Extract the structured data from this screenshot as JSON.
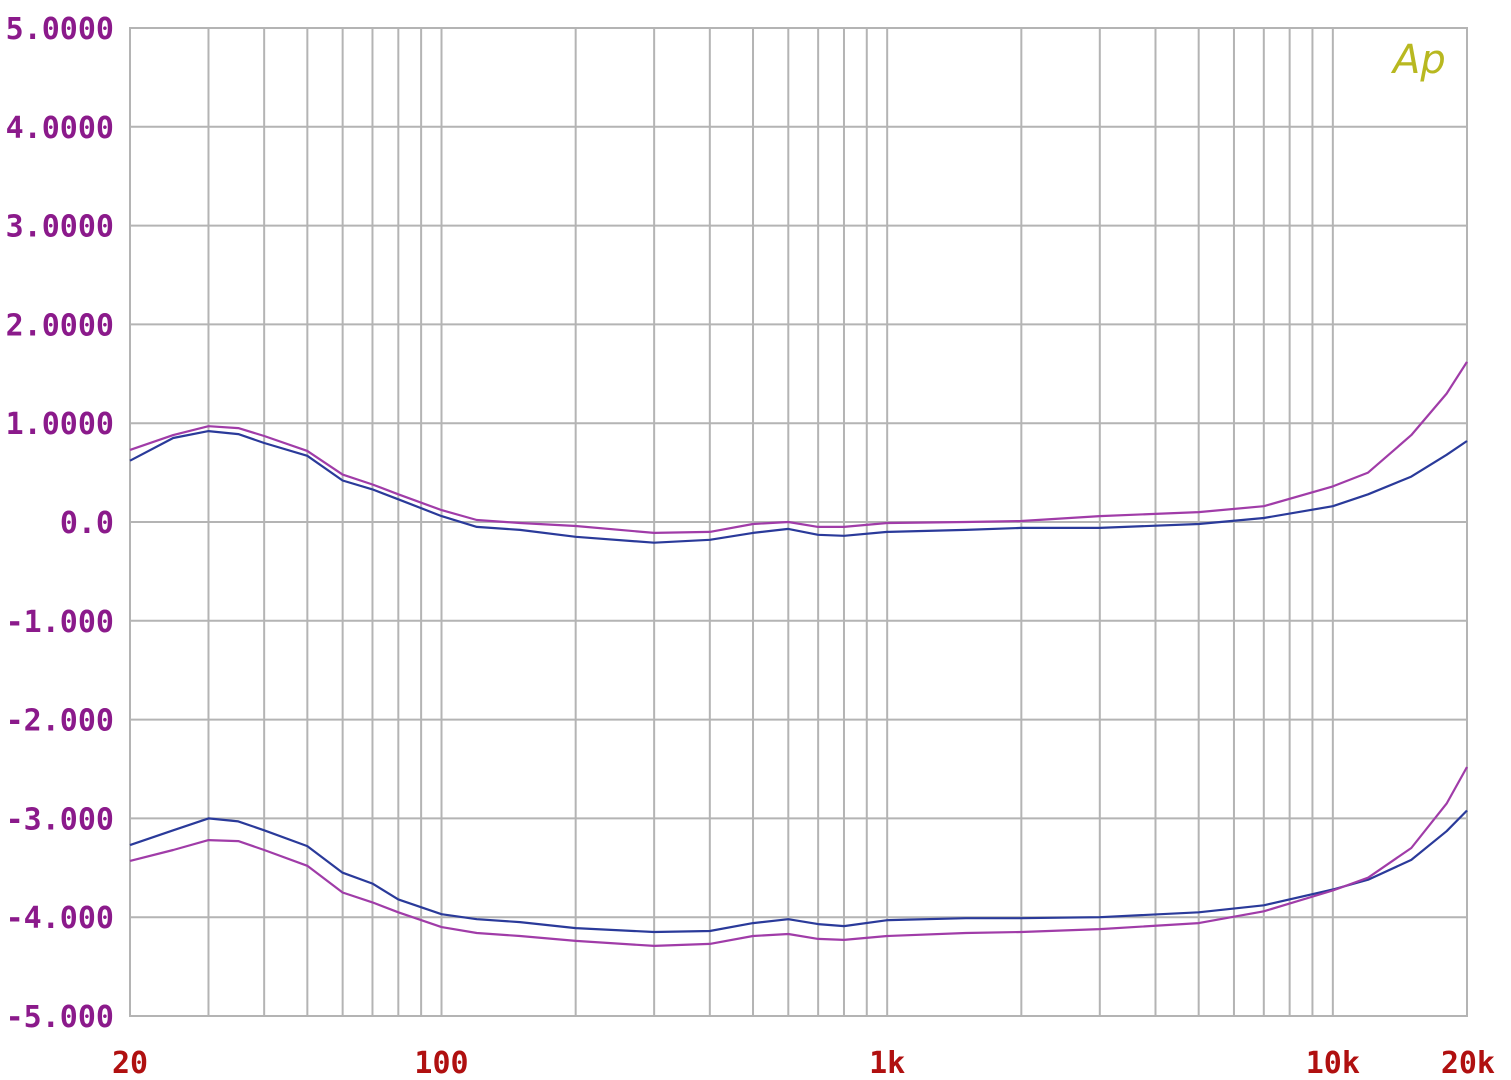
{
  "chart_data": {
    "type": "line",
    "title": "",
    "xlabel": "",
    "ylabel": "",
    "x_scale": "log",
    "xlim": [
      20,
      20000
    ],
    "ylim": [
      -5,
      5
    ],
    "grid": true,
    "logo_text": "Ap",
    "colors": {
      "grid": "#b4b4b4",
      "ytick_label": "#8b1a8b",
      "xtick_label": "#b01010",
      "logo": "#b8b820",
      "blue": "#2a3a9a",
      "magenta": "#a03ca8"
    },
    "y_ticks": [
      {
        "value": 5,
        "label": "5.0000"
      },
      {
        "value": 4,
        "label": "4.0000"
      },
      {
        "value": 3,
        "label": "3.0000"
      },
      {
        "value": 2,
        "label": "2.0000"
      },
      {
        "value": 1,
        "label": "1.0000"
      },
      {
        "value": 0,
        "label": "0.0"
      },
      {
        "value": -1,
        "label": "-1.000"
      },
      {
        "value": -2,
        "label": "-2.000"
      },
      {
        "value": -3,
        "label": "-3.000"
      },
      {
        "value": -4,
        "label": "-4.000"
      },
      {
        "value": -5,
        "label": "-5.000"
      }
    ],
    "x_ticks": [
      {
        "value": 20,
        "label": "20"
      },
      {
        "value": 100,
        "label": "100"
      },
      {
        "value": 1000,
        "label": "1k"
      },
      {
        "value": 10000,
        "label": "10k"
      },
      {
        "value": 20000,
        "label": "20k"
      }
    ],
    "x_gridlines": [
      20,
      30,
      40,
      50,
      60,
      70,
      80,
      90,
      100,
      200,
      300,
      400,
      500,
      600,
      700,
      800,
      900,
      1000,
      2000,
      3000,
      4000,
      5000,
      6000,
      7000,
      8000,
      9000,
      10000,
      20000
    ],
    "series": [
      {
        "color": "#a03ca8",
        "points": [
          [
            20,
            0.73
          ],
          [
            25,
            0.88
          ],
          [
            30,
            0.97
          ],
          [
            35,
            0.95
          ],
          [
            40,
            0.87
          ],
          [
            50,
            0.72
          ],
          [
            60,
            0.48
          ],
          [
            70,
            0.38
          ],
          [
            80,
            0.28
          ],
          [
            100,
            0.12
          ],
          [
            120,
            0.02
          ],
          [
            150,
            -0.01
          ],
          [
            200,
            -0.04
          ],
          [
            300,
            -0.11
          ],
          [
            400,
            -0.1
          ],
          [
            500,
            -0.02
          ],
          [
            600,
            0.0
          ],
          [
            700,
            -0.05
          ],
          [
            800,
            -0.05
          ],
          [
            1000,
            -0.01
          ],
          [
            1500,
            0.0
          ],
          [
            2000,
            0.01
          ],
          [
            3000,
            0.06
          ],
          [
            5000,
            0.1
          ],
          [
            7000,
            0.16
          ],
          [
            10000,
            0.36
          ],
          [
            12000,
            0.5
          ],
          [
            15000,
            0.88
          ],
          [
            18000,
            1.3
          ],
          [
            20000,
            1.62
          ]
        ]
      },
      {
        "color": "#2a3a9a",
        "points": [
          [
            20,
            0.62
          ],
          [
            25,
            0.85
          ],
          [
            30,
            0.92
          ],
          [
            35,
            0.89
          ],
          [
            40,
            0.8
          ],
          [
            50,
            0.67
          ],
          [
            60,
            0.42
          ],
          [
            70,
            0.33
          ],
          [
            80,
            0.23
          ],
          [
            100,
            0.06
          ],
          [
            120,
            -0.05
          ],
          [
            150,
            -0.08
          ],
          [
            200,
            -0.15
          ],
          [
            300,
            -0.21
          ],
          [
            400,
            -0.18
          ],
          [
            500,
            -0.11
          ],
          [
            600,
            -0.07
          ],
          [
            700,
            -0.13
          ],
          [
            800,
            -0.14
          ],
          [
            1000,
            -0.1
          ],
          [
            1500,
            -0.08
          ],
          [
            2000,
            -0.06
          ],
          [
            3000,
            -0.06
          ],
          [
            5000,
            -0.02
          ],
          [
            7000,
            0.04
          ],
          [
            10000,
            0.16
          ],
          [
            12000,
            0.28
          ],
          [
            15000,
            0.46
          ],
          [
            18000,
            0.68
          ],
          [
            20000,
            0.82
          ]
        ]
      },
      {
        "color": "#2a3a9a",
        "points": [
          [
            20,
            -3.27
          ],
          [
            25,
            -3.12
          ],
          [
            30,
            -3.0
          ],
          [
            35,
            -3.03
          ],
          [
            40,
            -3.12
          ],
          [
            50,
            -3.28
          ],
          [
            60,
            -3.55
          ],
          [
            70,
            -3.66
          ],
          [
            80,
            -3.82
          ],
          [
            100,
            -3.97
          ],
          [
            120,
            -4.02
          ],
          [
            150,
            -4.05
          ],
          [
            200,
            -4.11
          ],
          [
            300,
            -4.15
          ],
          [
            400,
            -4.14
          ],
          [
            500,
            -4.06
          ],
          [
            600,
            -4.02
          ],
          [
            700,
            -4.07
          ],
          [
            800,
            -4.09
          ],
          [
            1000,
            -4.03
          ],
          [
            1500,
            -4.01
          ],
          [
            2000,
            -4.01
          ],
          [
            3000,
            -4.0
          ],
          [
            5000,
            -3.95
          ],
          [
            7000,
            -3.88
          ],
          [
            10000,
            -3.72
          ],
          [
            12000,
            -3.62
          ],
          [
            15000,
            -3.42
          ],
          [
            18000,
            -3.13
          ],
          [
            20000,
            -2.92
          ]
        ]
      },
      {
        "color": "#a03ca8",
        "points": [
          [
            20,
            -3.43
          ],
          [
            25,
            -3.32
          ],
          [
            30,
            -3.22
          ],
          [
            35,
            -3.23
          ],
          [
            40,
            -3.32
          ],
          [
            50,
            -3.48
          ],
          [
            60,
            -3.75
          ],
          [
            70,
            -3.85
          ],
          [
            80,
            -3.95
          ],
          [
            100,
            -4.1
          ],
          [
            120,
            -4.16
          ],
          [
            150,
            -4.19
          ],
          [
            200,
            -4.24
          ],
          [
            300,
            -4.29
          ],
          [
            400,
            -4.27
          ],
          [
            500,
            -4.19
          ],
          [
            600,
            -4.17
          ],
          [
            700,
            -4.22
          ],
          [
            800,
            -4.23
          ],
          [
            1000,
            -4.19
          ],
          [
            1500,
            -4.16
          ],
          [
            2000,
            -4.15
          ],
          [
            3000,
            -4.12
          ],
          [
            5000,
            -4.06
          ],
          [
            7000,
            -3.94
          ],
          [
            10000,
            -3.73
          ],
          [
            12000,
            -3.6
          ],
          [
            15000,
            -3.3
          ],
          [
            18000,
            -2.85
          ],
          [
            20000,
            -2.48
          ]
        ]
      }
    ]
  }
}
